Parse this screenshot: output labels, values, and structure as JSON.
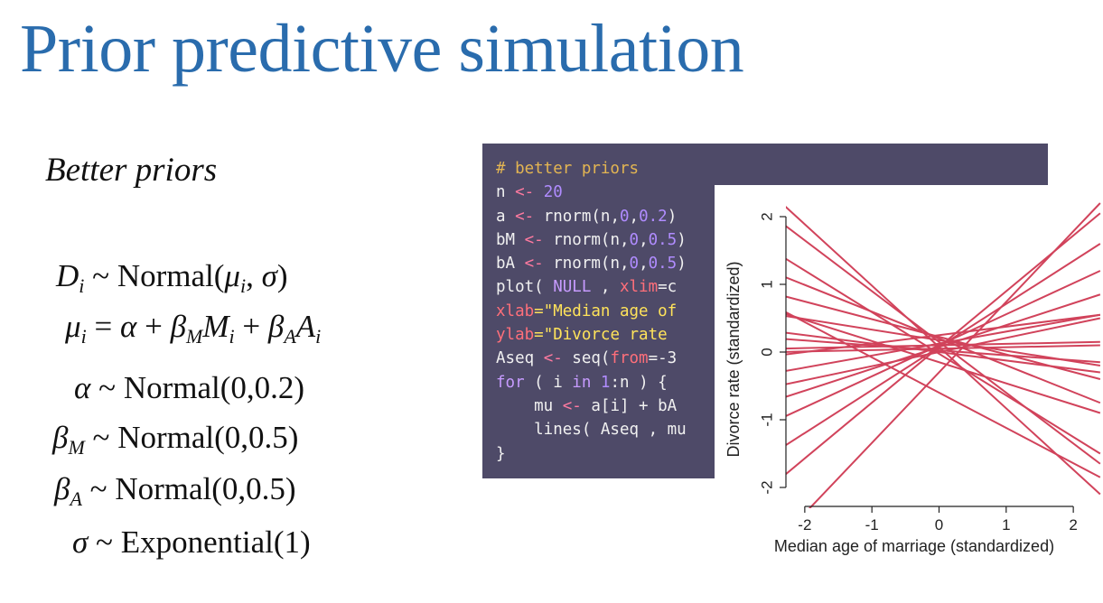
{
  "slide": {
    "title": "Prior predictive simulation",
    "subtitle": "Better priors"
  },
  "model": {
    "d": "D",
    "d_sub": "i",
    "tilde": "~",
    "equals": "=",
    "plus": "+",
    "normal": "Normal",
    "lparen": "(",
    "rparen": ")",
    "comma": ",",
    "mu": "μ",
    "mu_sub": "i",
    "sigma": "σ",
    "alpha": "α",
    "beta": "β",
    "m_sub": "M",
    "a_sub": "A",
    "m_var": "M",
    "m_var_sub": "i",
    "a_var": "A",
    "a_var_sub": "i",
    "alpha_args": "(0,0.2)",
    "beta_m_args": "(0,0.5)",
    "beta_a_args": "(0,0.5)",
    "exponential": "Exponential",
    "sigma_args": "(1)"
  },
  "code": {
    "line1": "# better priors",
    "l2_var": "n ",
    "l2_op": "<-",
    "l2_num": "20",
    "l3_pre": "a ",
    "l3_op": "<-",
    "l3_fn": " rnorm(n,",
    "l3_n1": "0",
    "l3_c": ",",
    "l3_n2": "0.2",
    "l3_end": ")",
    "l4_pre": "bM ",
    "l4_op": "<-",
    "l4_fn": " rnorm(n,",
    "l4_n1": "0",
    "l4_c": ",",
    "l4_n2": "0.5",
    "l4_end": ")",
    "l5_pre": "bA ",
    "l5_op": "<-",
    "l5_fn": " rnorm(n,",
    "l5_n1": "0",
    "l5_c": ",",
    "l5_n2": "0.5",
    "l5_end": ")",
    "l6_pre": "plot( ",
    "l6_null": "NULL",
    "l6_mid": " , ",
    "l6_arg": "xlim",
    "l6_tail": "=c",
    "l7_arg": "xlab",
    "l7_str": "=\"Median age of",
    "l8_arg": "ylab",
    "l8_str": "=\"Divorce rate",
    "l9_pre": "Aseq ",
    "l9_op": "<-",
    "l9_fn": " seq(",
    "l9_arg": "from",
    "l9_tail": "=-3",
    "l10_kw": "for",
    "l10_mid": " ( i ",
    "l10_in": "in",
    "l10_sp": " ",
    "l10_num": "1",
    "l10_tail": ":n ) {",
    "l11_pre": "    mu ",
    "l11_op": "<-",
    "l11_tail": " a[i] + bA",
    "l12": "    lines( Aseq , mu",
    "l13": "}"
  },
  "chart_data": {
    "type": "line",
    "xlabel": "Median age of marriage (standardized)",
    "ylabel": "Divorce rate (standardized)",
    "xlim": [
      -2.2,
      2.2
    ],
    "ylim": [
      -2.2,
      2.2
    ],
    "xticks": [
      "-2",
      "-1",
      "0",
      "1",
      "2"
    ],
    "yticks": [
      "-2",
      "-1",
      "0",
      "1",
      "2"
    ],
    "line_color": "#d1435b",
    "series": [
      {
        "x": [
          -2.4,
          2.4
        ],
        "y": [
          2.25,
          -2.1
        ]
      },
      {
        "x": [
          -2.4,
          2.4
        ],
        "y": [
          1.95,
          -1.65
        ]
      },
      {
        "x": [
          -2.4,
          2.4
        ],
        "y": [
          1.45,
          -1.5
        ]
      },
      {
        "x": [
          -2.4,
          2.4
        ],
        "y": [
          1.15,
          -0.75
        ]
      },
      {
        "x": [
          -2.4,
          2.4
        ],
        "y": [
          0.85,
          -0.4
        ]
      },
      {
        "x": [
          -2.4,
          2.4
        ],
        "y": [
          0.55,
          -0.2
        ]
      },
      {
        "x": [
          -2.4,
          2.4
        ],
        "y": [
          0.3,
          -0.3
        ]
      },
      {
        "x": [
          -2.4,
          2.4
        ],
        "y": [
          0.0,
          0.1
        ]
      },
      {
        "x": [
          -2.4,
          2.4
        ],
        "y": [
          -0.3,
          0.55
        ]
      },
      {
        "x": [
          -2.4,
          2.4
        ],
        "y": [
          -0.5,
          0.5
        ]
      },
      {
        "x": [
          -2.4,
          2.4
        ],
        "y": [
          -0.7,
          0.85
        ]
      },
      {
        "x": [
          -2.4,
          2.4
        ],
        "y": [
          -1.0,
          1.2
        ]
      },
      {
        "x": [
          -2.4,
          2.4
        ],
        "y": [
          -1.45,
          1.6
        ]
      },
      {
        "x": [
          -2.4,
          2.4
        ],
        "y": [
          -1.9,
          2.05
        ]
      },
      {
        "x": [
          -2.4,
          2.4
        ],
        "y": [
          0.05,
          0.15
        ]
      },
      {
        "x": [
          -2.4,
          2.4
        ],
        "y": [
          -0.05,
          0.55
        ]
      },
      {
        "x": [
          -2.4,
          2.4
        ],
        "y": [
          0.6,
          -0.9
        ]
      },
      {
        "x": [
          -2.4,
          2.4
        ],
        "y": [
          0.65,
          -1.85
        ]
      },
      {
        "x": [
          -2.4,
          2.4
        ],
        "y": [
          -2.8,
          2.2
        ]
      },
      {
        "x": [
          -2.4,
          2.4
        ],
        "y": [
          0.2,
          -0.15
        ]
      }
    ]
  }
}
